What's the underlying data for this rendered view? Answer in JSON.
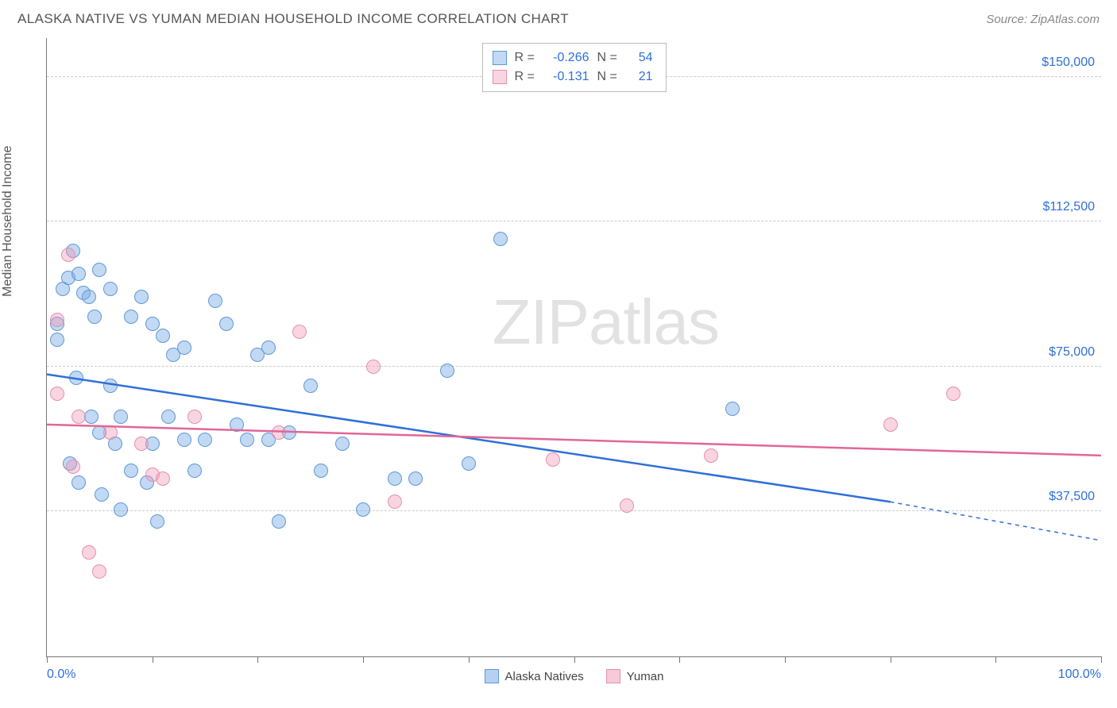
{
  "header": {
    "title": "ALASKA NATIVE VS YUMAN MEDIAN HOUSEHOLD INCOME CORRELATION CHART",
    "source_prefix": "Source: ",
    "source_name": "ZipAtlas.com"
  },
  "chart": {
    "type": "scatter",
    "ylabel": "Median Household Income",
    "xlim": [
      0,
      100
    ],
    "ylim": [
      0,
      160000
    ],
    "yticks": [
      37500,
      75000,
      112500,
      150000
    ],
    "ytick_labels": [
      "$37,500",
      "$75,000",
      "$112,500",
      "$150,000"
    ],
    "xtick_positions": [
      0,
      10,
      20,
      30,
      40,
      50,
      60,
      70,
      80,
      90,
      100
    ],
    "xlab_left": "0.0%",
    "xlab_right": "100.0%",
    "grid_color": "#cccccc",
    "axis_color": "#777777",
    "background_color": "#ffffff",
    "marker_radius": 9,
    "watermark": "ZIPatlas",
    "series": [
      {
        "name": "Alaska Natives",
        "fill": "rgba(120,170,230,0.45)",
        "stroke": "#5f98d6",
        "line_color": "#2f6fd8",
        "R": "-0.266",
        "N": "54",
        "trend": {
          "x1": 0,
          "y1": 73000,
          "x2": 80,
          "y2": 40000,
          "dash_to_x": 100,
          "dash_to_y": 30000
        },
        "points": [
          [
            1,
            86000
          ],
          [
            1,
            82000
          ],
          [
            1.5,
            95000
          ],
          [
            2,
            98000
          ],
          [
            2.2,
            50000
          ],
          [
            2.5,
            105000
          ],
          [
            2.8,
            72000
          ],
          [
            3,
            99000
          ],
          [
            3,
            45000
          ],
          [
            3.5,
            94000
          ],
          [
            4,
            93000
          ],
          [
            4.2,
            62000
          ],
          [
            4.5,
            88000
          ],
          [
            5,
            100000
          ],
          [
            5,
            58000
          ],
          [
            5.2,
            42000
          ],
          [
            6,
            95000
          ],
          [
            6,
            70000
          ],
          [
            6.5,
            55000
          ],
          [
            7,
            62000
          ],
          [
            7,
            38000
          ],
          [
            8,
            88000
          ],
          [
            8,
            48000
          ],
          [
            9,
            93000
          ],
          [
            9.5,
            45000
          ],
          [
            10,
            86000
          ],
          [
            10,
            55000
          ],
          [
            10.5,
            35000
          ],
          [
            11,
            83000
          ],
          [
            11.5,
            62000
          ],
          [
            12,
            78000
          ],
          [
            13,
            80000
          ],
          [
            13,
            56000
          ],
          [
            14,
            48000
          ],
          [
            15,
            56000
          ],
          [
            16,
            92000
          ],
          [
            17,
            86000
          ],
          [
            18,
            60000
          ],
          [
            19,
            56000
          ],
          [
            20,
            78000
          ],
          [
            21,
            80000
          ],
          [
            21,
            56000
          ],
          [
            22,
            35000
          ],
          [
            23,
            58000
          ],
          [
            25,
            70000
          ],
          [
            26,
            48000
          ],
          [
            28,
            55000
          ],
          [
            30,
            38000
          ],
          [
            33,
            46000
          ],
          [
            35,
            46000
          ],
          [
            38,
            74000
          ],
          [
            40,
            50000
          ],
          [
            43,
            108000
          ],
          [
            65,
            64000
          ]
        ]
      },
      {
        "name": "Yuman",
        "fill": "rgba(240,150,180,0.4)",
        "stroke": "#e48fad",
        "line_color": "#e06797",
        "R": "-0.131",
        "N": "21",
        "trend": {
          "x1": 0,
          "y1": 60000,
          "x2": 100,
          "y2": 52000
        },
        "points": [
          [
            1,
            87000
          ],
          [
            1,
            68000
          ],
          [
            2,
            104000
          ],
          [
            2.5,
            49000
          ],
          [
            3,
            62000
          ],
          [
            4,
            27000
          ],
          [
            5,
            22000
          ],
          [
            6,
            58000
          ],
          [
            9,
            55000
          ],
          [
            10,
            47000
          ],
          [
            11,
            46000
          ],
          [
            14,
            62000
          ],
          [
            22,
            58000
          ],
          [
            24,
            84000
          ],
          [
            31,
            75000
          ],
          [
            33,
            40000
          ],
          [
            48,
            51000
          ],
          [
            55,
            39000
          ],
          [
            63,
            52000
          ],
          [
            80,
            60000
          ],
          [
            86,
            68000
          ]
        ]
      }
    ],
    "bottom_legend": [
      {
        "label": "Alaska Natives",
        "fill": "rgba(120,170,230,0.55)",
        "stroke": "#5f98d6"
      },
      {
        "label": "Yuman",
        "fill": "rgba(240,150,180,0.5)",
        "stroke": "#e48fad"
      }
    ]
  }
}
